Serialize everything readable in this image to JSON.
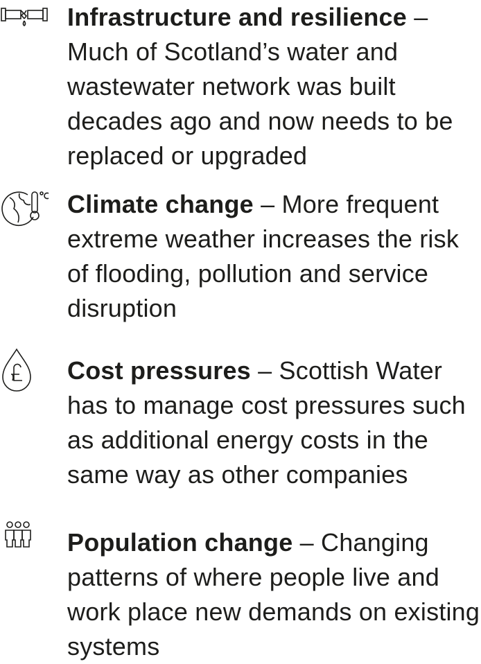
{
  "items": [
    {
      "title": "Infrastructure and resilience",
      "text": "– Much of Scotland’s water and wastewater network was built decades ago and now needs to be replaced or upgraded"
    },
    {
      "title": "Climate change",
      "text": "– More frequent extreme weather increases the risk of flooding, pollution and service disruption"
    },
    {
      "title": "Cost pressures",
      "text": "– Scottish Water has to manage cost pressures such as additional energy costs in the same way as other companies"
    },
    {
      "title": "Population change",
      "text": "– Changing patterns of where people live and work place new demands on existing systems"
    }
  ]
}
